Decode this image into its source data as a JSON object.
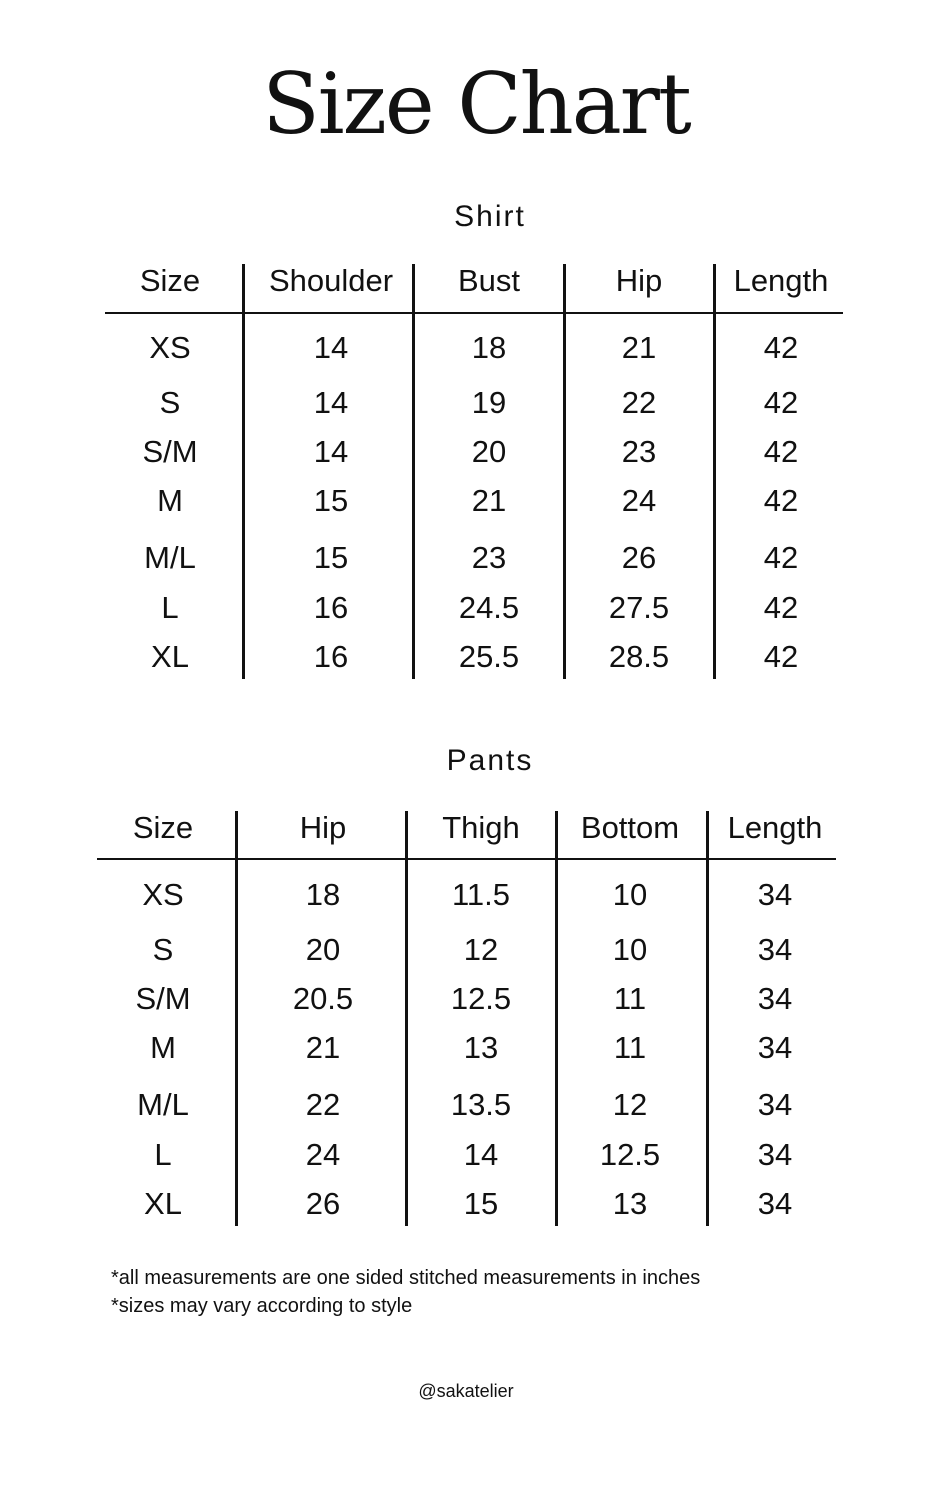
{
  "title": "Size Chart",
  "shirt": {
    "title": "Shirt",
    "headers": [
      "Size",
      "Shoulder",
      "Bust",
      "Hip",
      "Length"
    ],
    "rows": [
      [
        "XS",
        "14",
        "18",
        "21",
        "42"
      ],
      [
        "S",
        "14",
        "19",
        "22",
        "42"
      ],
      [
        "S/M",
        "14",
        "20",
        "23",
        "42"
      ],
      [
        "M",
        "15",
        "21",
        "24",
        "42"
      ],
      [
        "M/L",
        "15",
        "23",
        "26",
        "42"
      ],
      [
        "L",
        "16",
        "24.5",
        "27.5",
        "42"
      ],
      [
        "XL",
        "16",
        "25.5",
        "28.5",
        "42"
      ]
    ]
  },
  "pants": {
    "title": "Pants",
    "headers": [
      "Size",
      "Hip",
      "Thigh",
      "Bottom",
      "Length"
    ],
    "rows": [
      [
        "XS",
        "18",
        "11.5",
        "10",
        "34"
      ],
      [
        "S",
        "20",
        "12",
        "10",
        "34"
      ],
      [
        "S/M",
        "20.5",
        "12.5",
        "11",
        "34"
      ],
      [
        "M",
        "21",
        "13",
        "11",
        "34"
      ],
      [
        "M/L",
        "22",
        "13.5",
        "12",
        "34"
      ],
      [
        "L",
        "24",
        "14",
        "12.5",
        "34"
      ],
      [
        "XL",
        "26",
        "15",
        "13",
        "34"
      ]
    ]
  },
  "notes": [
    "*all measurements are one sided stitched measurements in inches",
    "*sizes may vary according to style"
  ],
  "handle": "@sakatelier"
}
